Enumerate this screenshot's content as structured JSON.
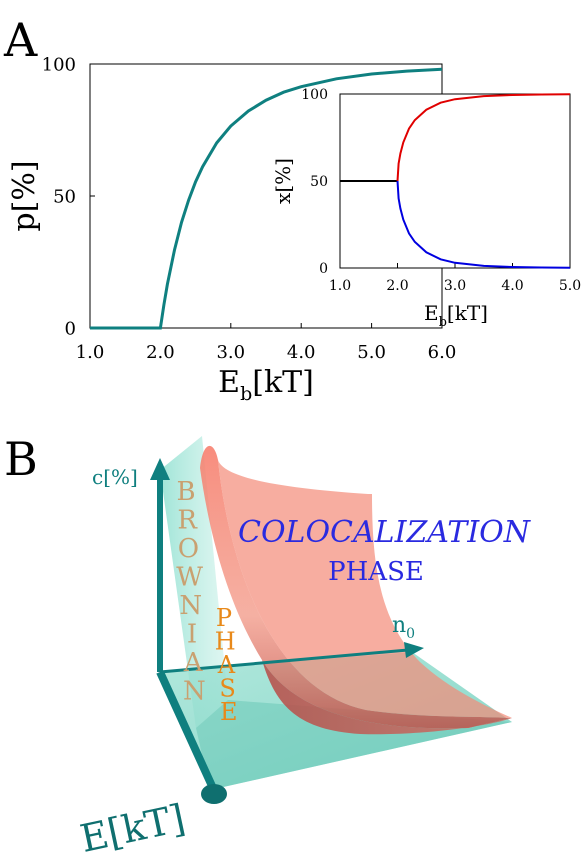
{
  "panel_a": {
    "label": "A"
  },
  "panel_b": {
    "label": "B"
  },
  "chart_data": [
    {
      "type": "line",
      "xlabel": "E",
      "xlabel_sub": "b",
      "xlabel_unit": "[kT]",
      "ylabel": "p[%]",
      "xlim": [
        1.0,
        6.0
      ],
      "ylim": [
        0,
        100
      ],
      "xticks": [
        "1.0",
        "2.0",
        "3.0",
        "4.0",
        "5.0",
        "6.0"
      ],
      "yticks": [
        "0",
        "50",
        "100"
      ],
      "grid": false,
      "series": [
        {
          "color": "#0f8080",
          "x": [
            1.0,
            2.0,
            2.05,
            2.1,
            2.2,
            2.3,
            2.4,
            2.5,
            2.6,
            2.8,
            3.0,
            3.25,
            3.5,
            3.75,
            4.0,
            4.5,
            5.0,
            5.5,
            6.0
          ],
          "y": [
            0,
            0,
            8.8,
            16.6,
            29.6,
            40.0,
            48.4,
            55.4,
            61.1,
            70.1,
            76.5,
            82.2,
            86.3,
            89.3,
            91.4,
            94.4,
            96.2,
            97.3,
            98.0
          ]
        }
      ]
    },
    {
      "type": "line",
      "xlabel": "E",
      "xlabel_sub": "b",
      "xlabel_unit": "[kT]",
      "ylabel": "x[%]",
      "xlim": [
        1.0,
        5.0
      ],
      "ylim": [
        0,
        100
      ],
      "xticks": [
        "1.0",
        "2.0",
        "3.0",
        "4.0",
        "5.0"
      ],
      "yticks": [
        "0",
        "50",
        "100"
      ],
      "grid": false,
      "series": [
        {
          "color": "#000000",
          "x": [
            1.0,
            2.0
          ],
          "y": [
            50,
            50
          ]
        },
        {
          "color": "#e00000",
          "x": [
            2.0,
            2.02,
            2.05,
            2.1,
            2.2,
            2.3,
            2.5,
            2.75,
            3.0,
            3.5,
            4.0,
            4.5,
            5.0
          ],
          "y": [
            50,
            60.0,
            65.8,
            72.2,
            80.1,
            85.0,
            91.0,
            95.0,
            97.0,
            98.8,
            99.4,
            99.7,
            99.8
          ]
        },
        {
          "color": "#0000e0",
          "x": [
            2.0,
            2.02,
            2.05,
            2.1,
            2.2,
            2.3,
            2.5,
            2.75,
            3.0,
            3.5,
            4.0,
            4.5,
            5.0
          ],
          "y": [
            50,
            40.0,
            34.2,
            27.8,
            19.9,
            15.0,
            9.0,
            5.0,
            3.0,
            1.2,
            0.6,
            0.3,
            0.2
          ]
        }
      ]
    }
  ],
  "diagram_b": {
    "axis_y_label": "c[%]",
    "axis_x_label": "n",
    "axis_x_sub": "0",
    "axis_z_label": "E[kT]",
    "brownian_word": "BROWNIAN",
    "brownian_phase_word": "PHASE",
    "colocalization_line1": "COLOCALIZATION",
    "colocalization_line2": "PHASE",
    "colors": {
      "axis": "#0f7f7f",
      "plane": "#7fd9c9",
      "surface": "#ef6f5f",
      "brownian_text": "#c9a070",
      "phase_text": "#e8891a",
      "colocalization_text": "#2a2ae0"
    }
  }
}
